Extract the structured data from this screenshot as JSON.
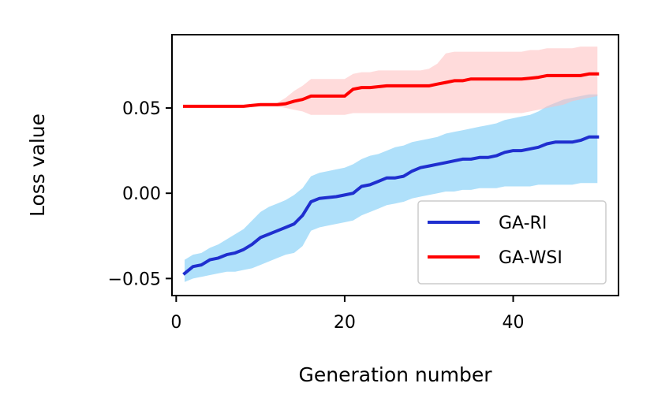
{
  "chart_data": {
    "type": "line",
    "title": "",
    "xlabel": "Generation number",
    "ylabel": "Loss value",
    "xlim": [
      -0.5,
      52.5
    ],
    "ylim": [
      -0.06,
      0.093
    ],
    "xticks": [
      0,
      20,
      40
    ],
    "xtick_labels": [
      "0",
      "20",
      "40"
    ],
    "yticks": [
      -0.05,
      0.0,
      0.05
    ],
    "ytick_labels": [
      "−0.05",
      "0.00",
      "0.05"
    ],
    "legend_position": "lower-right",
    "series": [
      {
        "name": "GA-RI",
        "color": "#1f2fcf",
        "band_color": "#6ec6f5",
        "x": [
          1,
          2,
          3,
          4,
          5,
          6,
          7,
          8,
          9,
          10,
          11,
          12,
          13,
          14,
          15,
          16,
          17,
          18,
          19,
          20,
          21,
          22,
          23,
          24,
          25,
          26,
          27,
          28,
          29,
          30,
          31,
          32,
          33,
          34,
          35,
          36,
          37,
          38,
          39,
          40,
          41,
          42,
          43,
          44,
          45,
          46,
          47,
          48,
          49,
          50
        ],
        "mean": [
          -0.047,
          -0.043,
          -0.042,
          -0.039,
          -0.038,
          -0.036,
          -0.035,
          -0.033,
          -0.03,
          -0.026,
          -0.024,
          -0.022,
          -0.02,
          -0.018,
          -0.013,
          -0.005,
          -0.003,
          -0.0025,
          -0.002,
          -0.001,
          0.0,
          0.004,
          0.005,
          0.007,
          0.009,
          0.009,
          0.01,
          0.013,
          0.015,
          0.016,
          0.017,
          0.018,
          0.019,
          0.02,
          0.02,
          0.021,
          0.021,
          0.022,
          0.024,
          0.025,
          0.025,
          0.026,
          0.027,
          0.029,
          0.03,
          0.03,
          0.03,
          0.031,
          0.033,
          0.033
        ],
        "lower": [
          -0.052,
          -0.05,
          -0.049,
          -0.048,
          -0.047,
          -0.046,
          -0.046,
          -0.045,
          -0.044,
          -0.042,
          -0.04,
          -0.038,
          -0.036,
          -0.035,
          -0.031,
          -0.022,
          -0.02,
          -0.019,
          -0.018,
          -0.017,
          -0.016,
          -0.013,
          -0.011,
          -0.009,
          -0.007,
          -0.006,
          -0.005,
          -0.003,
          -0.002,
          -0.001,
          0.0,
          0.001,
          0.001,
          0.002,
          0.002,
          0.003,
          0.003,
          0.003,
          0.004,
          0.004,
          0.004,
          0.004,
          0.005,
          0.005,
          0.005,
          0.005,
          0.005,
          0.006,
          0.006,
          0.006
        ],
        "upper": [
          -0.039,
          -0.036,
          -0.035,
          -0.032,
          -0.03,
          -0.027,
          -0.024,
          -0.021,
          -0.016,
          -0.011,
          -0.008,
          -0.006,
          -0.004,
          -0.001,
          0.003,
          0.01,
          0.012,
          0.013,
          0.014,
          0.015,
          0.017,
          0.02,
          0.022,
          0.023,
          0.025,
          0.027,
          0.028,
          0.03,
          0.031,
          0.032,
          0.033,
          0.035,
          0.036,
          0.037,
          0.038,
          0.039,
          0.04,
          0.041,
          0.043,
          0.044,
          0.045,
          0.046,
          0.048,
          0.051,
          0.053,
          0.055,
          0.056,
          0.057,
          0.058,
          0.058
        ]
      },
      {
        "name": "GA-WSI",
        "color": "#ff0000",
        "band_color": "#ffbdbd",
        "x": [
          1,
          2,
          3,
          4,
          5,
          6,
          7,
          8,
          9,
          10,
          11,
          12,
          13,
          14,
          15,
          16,
          17,
          18,
          19,
          20,
          21,
          22,
          23,
          24,
          25,
          26,
          27,
          28,
          29,
          30,
          31,
          32,
          33,
          34,
          35,
          36,
          37,
          38,
          39,
          40,
          41,
          42,
          43,
          44,
          45,
          46,
          47,
          48,
          49,
          50
        ],
        "mean": [
          0.051,
          0.051,
          0.051,
          0.051,
          0.051,
          0.051,
          0.051,
          0.051,
          0.0515,
          0.052,
          0.052,
          0.052,
          0.0525,
          0.054,
          0.055,
          0.057,
          0.057,
          0.057,
          0.057,
          0.057,
          0.061,
          0.062,
          0.062,
          0.0625,
          0.063,
          0.063,
          0.063,
          0.063,
          0.063,
          0.063,
          0.064,
          0.065,
          0.066,
          0.066,
          0.067,
          0.067,
          0.067,
          0.067,
          0.067,
          0.067,
          0.067,
          0.0675,
          0.068,
          0.069,
          0.069,
          0.069,
          0.069,
          0.069,
          0.07,
          0.07
        ],
        "lower": [
          0.051,
          0.051,
          0.051,
          0.051,
          0.051,
          0.051,
          0.051,
          0.051,
          0.0515,
          0.052,
          0.052,
          0.051,
          0.05,
          0.049,
          0.048,
          0.046,
          0.046,
          0.046,
          0.046,
          0.046,
          0.047,
          0.047,
          0.047,
          0.047,
          0.047,
          0.047,
          0.047,
          0.047,
          0.047,
          0.047,
          0.047,
          0.047,
          0.047,
          0.047,
          0.047,
          0.047,
          0.047,
          0.047,
          0.047,
          0.047,
          0.047,
          0.048,
          0.049,
          0.05,
          0.051,
          0.052,
          0.054,
          0.055,
          0.056,
          0.057
        ],
        "upper": [
          0.051,
          0.051,
          0.051,
          0.051,
          0.051,
          0.051,
          0.051,
          0.051,
          0.0515,
          0.052,
          0.052,
          0.053,
          0.056,
          0.06,
          0.063,
          0.067,
          0.067,
          0.067,
          0.067,
          0.067,
          0.07,
          0.071,
          0.071,
          0.072,
          0.072,
          0.072,
          0.072,
          0.072,
          0.072,
          0.073,
          0.076,
          0.082,
          0.083,
          0.083,
          0.083,
          0.083,
          0.083,
          0.083,
          0.083,
          0.083,
          0.083,
          0.084,
          0.084,
          0.085,
          0.085,
          0.085,
          0.085,
          0.086,
          0.086,
          0.086
        ]
      }
    ]
  }
}
